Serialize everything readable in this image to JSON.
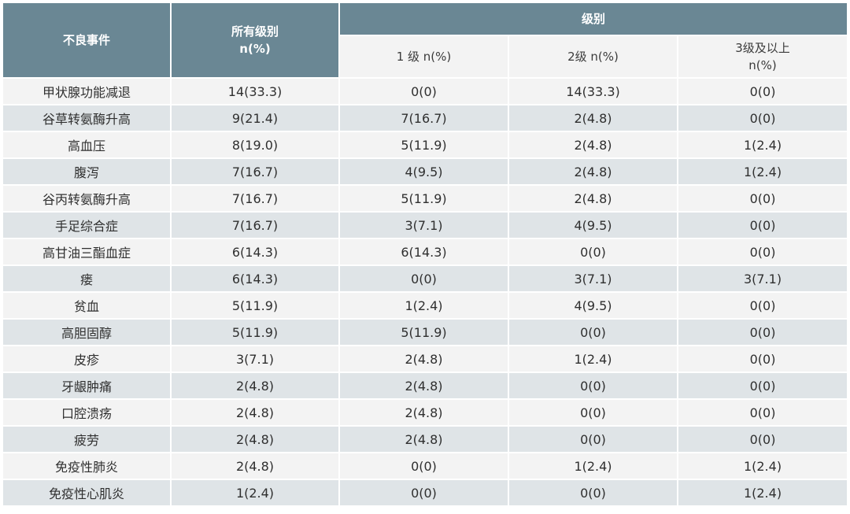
{
  "header": {
    "event": "不良事件",
    "all_grades": "所有级别\nn(%)",
    "grade_group": "级别",
    "grade1": "1 级 n(%)",
    "grade2": "2级 n(%)",
    "grade3plus": "3级及以上\nn(%)"
  },
  "rows": [
    {
      "event": "甲状腺功能减退",
      "all": "14(33.3)",
      "g1": "0(0)",
      "g2": "14(33.3)",
      "g3": "0(0)"
    },
    {
      "event": "谷草转氨酶升高",
      "all": "9(21.4)",
      "g1": "7(16.7)",
      "g2": "2(4.8)",
      "g3": "0(0)"
    },
    {
      "event": "高血压",
      "all": "8(19.0)",
      "g1": "5(11.9)",
      "g2": "2(4.8)",
      "g3": "1(2.4)"
    },
    {
      "event": "腹泻",
      "all": "7(16.7)",
      "g1": "4(9.5)",
      "g2": "2(4.8)",
      "g3": "1(2.4)"
    },
    {
      "event": "谷丙转氨酶升高",
      "all": "7(16.7)",
      "g1": "5(11.9)",
      "g2": "2(4.8)",
      "g3": "0(0)"
    },
    {
      "event": "手足综合症",
      "all": "7(16.7)",
      "g1": "3(7.1)",
      "g2": "4(9.5)",
      "g3": "0(0)"
    },
    {
      "event": "高甘油三酯血症",
      "all": "6(14.3)",
      "g1": "6(14.3)",
      "g2": "0(0)",
      "g3": "0(0)"
    },
    {
      "event": "瘘",
      "all": "6(14.3)",
      "g1": "0(0)",
      "g2": "3(7.1)",
      "g3": "3(7.1)"
    },
    {
      "event": "贫血",
      "all": "5(11.9)",
      "g1": "1(2.4)",
      "g2": "4(9.5)",
      "g3": "0(0)"
    },
    {
      "event": "高胆固醇",
      "all": "5(11.9)",
      "g1": "5(11.9)",
      "g2": "0(0)",
      "g3": "0(0)"
    },
    {
      "event": "皮疹",
      "all": "3(7.1)",
      "g1": "2(4.8)",
      "g2": "1(2.4)",
      "g3": "0(0)"
    },
    {
      "event": "牙龈肿痛",
      "all": "2(4.8)",
      "g1": "2(4.8)",
      "g2": "0(0)",
      "g3": "0(0)"
    },
    {
      "event": "口腔溃疡",
      "all": "2(4.8)",
      "g1": "2(4.8)",
      "g2": "0(0)",
      "g3": "0(0)"
    },
    {
      "event": "疲劳",
      "all": "2(4.8)",
      "g1": "2(4.8)",
      "g2": "0(0)",
      "g3": "0(0)"
    },
    {
      "event": "免疫性肺炎",
      "all": "2(4.8)",
      "g1": "0(0)",
      "g2": "1(2.4)",
      "g3": "1(2.4)"
    },
    {
      "event": "免疫性心肌炎",
      "all": "1(2.4)",
      "g1": "0(0)",
      "g2": "0(0)",
      "g3": "1(2.4)"
    }
  ],
  "colors": {
    "header_bg": "#6a8794",
    "row_light": "#f3f3f3",
    "row_dark": "#dfe4e7"
  }
}
